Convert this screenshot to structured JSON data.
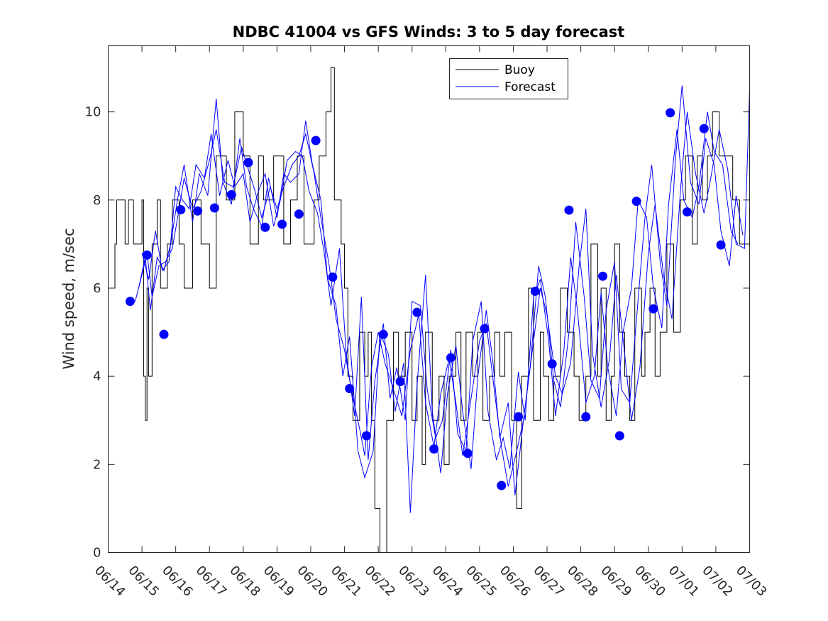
{
  "chart_data": {
    "type": "line",
    "title": "NDBC 41004 vs GFS Winds: 3 to 5 day forecast",
    "xlabel": "",
    "ylabel": "Wind speed, m/sec",
    "x_tick_labels": [
      "06/14",
      "06/15",
      "06/16",
      "06/17",
      "06/18",
      "06/19",
      "06/20",
      "06/21",
      "06/22",
      "06/23",
      "06/24",
      "06/25",
      "06/26",
      "06/27",
      "06/28",
      "06/29",
      "06/30",
      "07/01",
      "07/02",
      "07/03"
    ],
    "xlim": [
      0,
      19
    ],
    "ylim": [
      0,
      11.5
    ],
    "y_ticks": [
      0,
      2,
      4,
      6,
      8,
      10
    ],
    "y_tick_labels": [
      "0",
      "2",
      "4",
      "6",
      "8",
      "10"
    ],
    "grid": false,
    "legend_position": "top-center",
    "colors": {
      "buoy": "#000000",
      "forecast": "#0000ff",
      "marker": "#0000ff"
    },
    "series": [
      {
        "name": "Buoy",
        "style": "step",
        "x": [
          0.0,
          0.2,
          0.25,
          0.5,
          0.6,
          0.75,
          0.9,
          1.0,
          1.05,
          1.1,
          1.15,
          1.2,
          1.3,
          1.45,
          1.55,
          1.75,
          1.9,
          2.1,
          2.25,
          2.5,
          2.75,
          3.0,
          3.2,
          3.5,
          3.75,
          4.0,
          4.2,
          4.45,
          4.6,
          4.9,
          5.2,
          5.4,
          5.6,
          5.8,
          6.1,
          6.25,
          6.35,
          6.45,
          6.6,
          6.7,
          6.9,
          7.0,
          7.1,
          7.25,
          7.45,
          7.6,
          7.7,
          7.8,
          7.9,
          8.05,
          8.25,
          8.45,
          8.6,
          8.8,
          9.0,
          9.15,
          9.3,
          9.4,
          9.6,
          9.8,
          9.95,
          10.1,
          10.3,
          10.45,
          10.6,
          10.8,
          10.95,
          11.1,
          11.3,
          11.45,
          11.6,
          11.75,
          11.95,
          12.1,
          12.25,
          12.45,
          12.6,
          12.8,
          12.9,
          13.05,
          13.2,
          13.4,
          13.6,
          13.8,
          13.95,
          14.15,
          14.3,
          14.5,
          14.6,
          14.75,
          14.9,
          15.0,
          15.15,
          15.3,
          15.45,
          15.6,
          15.8,
          15.9,
          16.05,
          16.2,
          16.35,
          16.55,
          16.75,
          16.95,
          17.1,
          17.3,
          17.45,
          17.6,
          17.75,
          17.9,
          18.1,
          18.3,
          18.5,
          18.7,
          19.0
        ],
        "y": [
          6,
          7,
          8,
          7,
          8,
          7,
          7,
          8,
          4,
          3,
          6,
          4,
          7,
          8,
          6,
          7,
          8,
          7,
          6,
          8,
          7,
          6,
          9,
          8,
          10,
          9,
          7,
          9,
          8,
          9,
          7,
          8,
          9,
          7,
          8,
          9,
          9,
          10,
          11,
          8,
          7,
          6,
          4,
          3,
          5,
          4,
          5,
          3,
          1,
          0,
          3,
          5,
          4,
          5,
          3,
          4,
          2,
          5,
          3,
          4,
          2,
          4,
          5,
          3,
          5,
          4,
          5,
          3,
          4,
          5,
          4,
          5,
          3,
          1,
          4,
          6,
          3,
          5,
          4,
          3,
          4,
          6,
          5,
          4,
          3,
          4,
          7,
          4,
          6,
          3,
          4,
          7,
          5,
          4,
          3,
          6,
          4,
          5,
          6,
          4,
          5,
          7,
          5,
          8,
          9,
          7,
          9,
          8,
          9,
          10,
          9,
          9,
          8,
          7,
          8
        ]
      },
      {
        "name": "Forecast",
        "style": "line",
        "x": [
          0.8,
          1.0,
          1.15,
          1.3,
          1.5,
          1.7,
          1.9,
          2.1,
          2.25,
          2.5,
          2.75,
          3.0,
          3.2,
          3.45,
          3.7,
          3.95,
          4.15,
          4.35,
          4.55,
          4.8,
          5.0,
          5.2,
          5.45,
          5.65,
          5.85,
          6.1,
          6.3,
          6.55,
          6.75,
          7.0,
          7.2,
          7.45,
          7.6,
          7.8,
          8.0,
          8.2,
          8.45,
          8.7,
          8.95,
          9.2,
          9.4,
          9.65,
          9.85,
          10.1,
          10.3,
          10.5,
          10.75,
          11.0,
          11.2,
          11.45,
          11.65,
          11.85,
          12.1,
          12.3,
          12.55,
          12.8,
          13.0,
          13.25,
          13.45,
          13.7,
          13.95,
          14.15,
          14.35,
          14.6,
          14.85,
          15.05,
          15.3,
          15.5,
          15.75,
          16.0,
          16.2,
          16.45,
          16.7,
          16.95,
          17.15,
          17.4,
          17.65,
          17.85,
          18.1,
          18.35,
          18.6,
          18.85,
          19.0
        ],
        "y": [
          5.7,
          6.3,
          6.8,
          5.8,
          6.5,
          6.6,
          6.9,
          7.8,
          8.5,
          7.8,
          8.2,
          8.9,
          9.6,
          8.4,
          8.3,
          9.2,
          8.7,
          8.2,
          7.6,
          8.3,
          7.8,
          8.3,
          8.8,
          9.0,
          9.5,
          8.6,
          7.6,
          6.5,
          5.3,
          4.6,
          3.7,
          2.8,
          2.2,
          4.2,
          5.0,
          4.3,
          3.7,
          3.1,
          4.6,
          5.4,
          3.4,
          2.4,
          3.6,
          4.4,
          3.4,
          2.2,
          3.5,
          4.8,
          5.2,
          3.6,
          2.4,
          1.5,
          2.3,
          3.0,
          4.5,
          6.0,
          5.4,
          4.0,
          3.6,
          4.3,
          6.5,
          7.8,
          4.5,
          3.3,
          4.4,
          6.3,
          4.5,
          3.0,
          4.2,
          6.8,
          7.9,
          6.3,
          5.3,
          8.2,
          10.0,
          8.6,
          7.7,
          8.5,
          9.6,
          8.7,
          7.0,
          6.9,
          10.5
        ]
      },
      {
        "name": "Forecast",
        "style": "line",
        "x": [
          0.9,
          1.1,
          1.25,
          1.45,
          1.65,
          1.85,
          2.05,
          2.25,
          2.5,
          2.7,
          2.95,
          3.2,
          3.4,
          3.65,
          3.9,
          4.1,
          4.3,
          4.55,
          4.75,
          5.0,
          5.2,
          5.4,
          5.65,
          5.85,
          6.05,
          6.3,
          6.5,
          6.75,
          6.95,
          7.15,
          7.4,
          7.6,
          7.85,
          8.05,
          8.3,
          8.5,
          8.75,
          8.95,
          9.15,
          9.4,
          9.6,
          9.85,
          10.05,
          10.3,
          10.5,
          10.75,
          10.95,
          11.2,
          11.4,
          11.6,
          11.85,
          12.05,
          12.3,
          12.5,
          12.75,
          12.95,
          13.2,
          13.4,
          13.65,
          13.85,
          14.1,
          14.3,
          14.55,
          14.75,
          15.0,
          15.2,
          15.45,
          15.65,
          15.9,
          16.1,
          16.35,
          16.55,
          16.8,
          17.0,
          17.25,
          17.5,
          17.7,
          17.95,
          18.15,
          18.4,
          18.6,
          18.8
        ],
        "y": [
          6.0,
          6.7,
          5.5,
          6.7,
          6.4,
          7.0,
          8.0,
          8.8,
          7.5,
          8.6,
          8.1,
          10.3,
          8.4,
          7.9,
          9.4,
          8.3,
          7.8,
          7.4,
          8.5,
          7.6,
          8.6,
          8.4,
          8.6,
          9.8,
          8.8,
          8.0,
          6.2,
          5.6,
          4.0,
          4.9,
          2.3,
          1.7,
          2.3,
          5.0,
          4.5,
          3.2,
          4.3,
          0.9,
          3.8,
          6.3,
          3.2,
          1.8,
          3.6,
          4.7,
          3.2,
          1.9,
          4.0,
          5.5,
          4.3,
          2.6,
          3.4,
          1.3,
          3.0,
          4.2,
          6.5,
          5.8,
          3.9,
          3.3,
          5.0,
          7.5,
          5.8,
          3.9,
          3.5,
          5.5,
          6.6,
          3.7,
          3.4,
          5.3,
          7.6,
          8.8,
          6.6,
          5.6,
          8.9,
          10.6,
          8.4,
          7.9,
          9.4,
          8.8,
          7.3,
          6.5,
          8.1,
          7.2
        ]
      },
      {
        "name": "Forecast",
        "style": "line",
        "x": [
          1.0,
          1.2,
          1.4,
          1.6,
          1.8,
          2.0,
          2.2,
          2.4,
          2.6,
          2.85,
          3.05,
          3.3,
          3.55,
          3.75,
          4.0,
          4.2,
          4.45,
          4.65,
          4.9,
          5.1,
          5.3,
          5.55,
          5.75,
          5.95,
          6.2,
          6.4,
          6.6,
          6.85,
          7.05,
          7.3,
          7.5,
          7.7,
          7.9,
          8.15,
          8.35,
          8.55,
          8.8,
          9.0,
          9.25,
          9.45,
          9.7,
          9.9,
          10.15,
          10.35,
          10.6,
          10.8,
          11.05,
          11.25,
          11.5,
          11.7,
          11.9,
          12.15,
          12.35,
          12.6,
          12.8,
          13.05,
          13.25,
          13.5,
          13.7,
          13.9,
          14.15,
          14.4,
          14.6,
          14.8,
          15.05,
          15.25,
          15.5,
          15.7,
          15.95,
          16.15,
          16.4,
          16.6,
          16.85,
          17.05,
          17.3,
          17.5,
          17.75,
          17.95,
          18.2,
          18.45,
          18.65
        ],
        "y": [
          6.8,
          6.2,
          7.3,
          6.4,
          6.6,
          8.3,
          8.0,
          7.8,
          8.8,
          8.5,
          9.5,
          8.1,
          8.9,
          8.3,
          8.6,
          7.5,
          8.2,
          8.6,
          7.4,
          8.0,
          8.9,
          9.1,
          9.0,
          8.2,
          7.7,
          6.8,
          5.6,
          6.9,
          4.5,
          3.1,
          5.8,
          2.1,
          3.9,
          5.2,
          3.5,
          4.2,
          3.0,
          5.7,
          5.6,
          3.7,
          2.6,
          3.0,
          4.6,
          2.7,
          2.3,
          4.8,
          5.7,
          3.2,
          2.1,
          2.6,
          1.9,
          4.1,
          3.0,
          5.8,
          6.2,
          4.8,
          3.1,
          4.6,
          6.7,
          5.5,
          3.4,
          4.0,
          5.9,
          4.2,
          3.1,
          5.0,
          6.0,
          8.0,
          7.6,
          6.0,
          5.1,
          7.9,
          9.6,
          8.0,
          7.6,
          8.3,
          10.0,
          9.1,
          8.8,
          7.3,
          7.0
        ]
      },
      {
        "name": "Forecast markers",
        "style": "markers",
        "x": [
          0.65,
          1.15,
          1.65,
          2.15,
          2.65,
          3.15,
          3.65,
          4.15,
          4.65,
          5.15,
          5.65,
          6.15,
          6.65,
          7.15,
          7.65,
          8.15,
          8.65,
          9.15,
          9.65,
          10.15,
          10.65,
          11.15,
          11.65,
          12.15,
          12.65,
          13.15,
          13.65,
          14.15,
          14.65,
          15.15,
          15.65,
          16.15,
          16.65,
          17.15,
          17.65,
          18.15,
          18.65
        ],
        "y": [
          5.7,
          6.75,
          4.95,
          7.78,
          7.75,
          7.82,
          8.12,
          8.85,
          7.38,
          7.45,
          7.68,
          9.35,
          6.25,
          3.72,
          2.65,
          4.95,
          3.88,
          5.45,
          2.35,
          4.42,
          2.25,
          5.08,
          1.52,
          3.08,
          5.93,
          4.28,
          7.77,
          3.08,
          6.27,
          2.65,
          7.97,
          5.53,
          9.98,
          7.73,
          9.62,
          6.98,
          null
        ]
      }
    ]
  }
}
